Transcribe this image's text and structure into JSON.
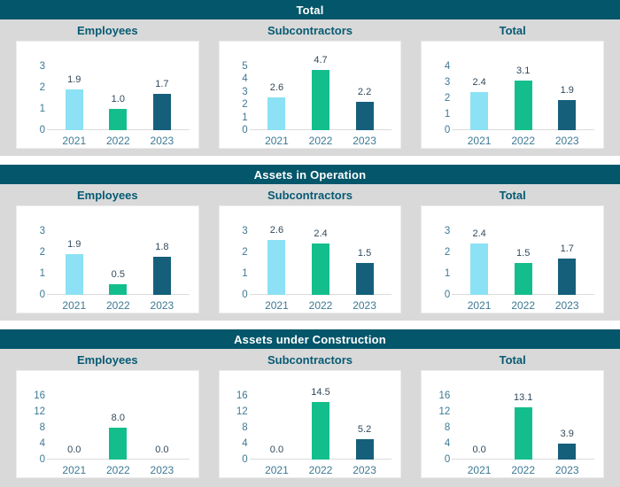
{
  "colors": {
    "header_bg": "#04566A",
    "header_text": "#FFFFFF",
    "section_bg": "#D9D9D9",
    "card_bg": "#FFFFFF",
    "card_border": "#ECECEC",
    "subtitle_text": "#075A73",
    "value_text": "#31495C",
    "axis_text": "#3D7994",
    "axis_line": "#DCDCDC",
    "year_colors": {
      "2021": "#8CE1F4",
      "2022": "#14BE8C",
      "2023": "#155F7B"
    }
  },
  "sections": [
    {
      "title": "Total"
    },
    {
      "title": "Assets in Operation"
    },
    {
      "title": "Assets under Construction"
    }
  ],
  "chart_data": [
    {
      "type": "bar",
      "section": "Total",
      "title": "Employees",
      "categories": [
        "2021",
        "2022",
        "2023"
      ],
      "values": [
        1.9,
        1.0,
        1.7
      ],
      "data_labels": [
        "1.9",
        "1.0",
        "1.7"
      ],
      "ylim": [
        0,
        3
      ],
      "yticks": [
        0,
        1,
        2,
        3
      ],
      "grid": false,
      "legend": "none"
    },
    {
      "type": "bar",
      "section": "Total",
      "title": "Subcontractors",
      "categories": [
        "2021",
        "2022",
        "2023"
      ],
      "values": [
        2.6,
        4.7,
        2.2
      ],
      "data_labels": [
        "2.6",
        "4.7",
        "2.2"
      ],
      "ylim": [
        0,
        5
      ],
      "yticks": [
        0,
        1,
        2,
        3,
        4,
        5
      ],
      "grid": false,
      "legend": "none"
    },
    {
      "type": "bar",
      "section": "Total",
      "title": "Total",
      "categories": [
        "2021",
        "2022",
        "2023"
      ],
      "values": [
        2.4,
        3.1,
        1.9
      ],
      "data_labels": [
        "2.4",
        "3.1",
        "1.9"
      ],
      "ylim": [
        0,
        4
      ],
      "yticks": [
        0,
        1,
        2,
        3,
        4
      ],
      "grid": false,
      "legend": "none"
    },
    {
      "type": "bar",
      "section": "Assets in Operation",
      "title": "Employees",
      "categories": [
        "2021",
        "2022",
        "2023"
      ],
      "values": [
        1.9,
        0.5,
        1.8
      ],
      "data_labels": [
        "1.9",
        "0.5",
        "1.8"
      ],
      "ylim": [
        0,
        3
      ],
      "yticks": [
        0,
        1,
        2,
        3
      ],
      "grid": false,
      "legend": "none"
    },
    {
      "type": "bar",
      "section": "Assets in Operation",
      "title": "Subcontractors",
      "categories": [
        "2021",
        "2022",
        "2023"
      ],
      "values": [
        2.6,
        2.4,
        1.5
      ],
      "data_labels": [
        "2.6",
        "2.4",
        "1.5"
      ],
      "ylim": [
        0,
        3
      ],
      "yticks": [
        0,
        1,
        2,
        3
      ],
      "grid": false,
      "legend": "none"
    },
    {
      "type": "bar",
      "section": "Assets in Operation",
      "title": "Total",
      "categories": [
        "2021",
        "2022",
        "2023"
      ],
      "values": [
        2.4,
        1.5,
        1.7
      ],
      "data_labels": [
        "2.4",
        "1.5",
        "1.7"
      ],
      "ylim": [
        0,
        3
      ],
      "yticks": [
        0,
        1,
        2,
        3
      ],
      "grid": false,
      "legend": "none"
    },
    {
      "type": "bar",
      "section": "Assets under Construction",
      "title": "Employees",
      "categories": [
        "2021",
        "2022",
        "2023"
      ],
      "values": [
        0.0,
        8.0,
        0.0
      ],
      "data_labels": [
        "0.0",
        "8.0",
        "0.0"
      ],
      "ylim": [
        0,
        16
      ],
      "yticks": [
        0,
        4,
        8,
        12,
        16
      ],
      "grid": false,
      "legend": "none"
    },
    {
      "type": "bar",
      "section": "Assets under Construction",
      "title": "Subcontractors",
      "categories": [
        "2021",
        "2022",
        "2023"
      ],
      "values": [
        0.0,
        14.5,
        5.2
      ],
      "data_labels": [
        "0.0",
        "14.5",
        "5.2"
      ],
      "ylim": [
        0,
        16
      ],
      "yticks": [
        0,
        4,
        8,
        12,
        16
      ],
      "grid": false,
      "legend": "none"
    },
    {
      "type": "bar",
      "section": "Assets under Construction",
      "title": "Total",
      "categories": [
        "2021",
        "2022",
        "2023"
      ],
      "values": [
        0.0,
        13.1,
        3.9
      ],
      "data_labels": [
        "0.0",
        "13.1",
        "3.9"
      ],
      "ylim": [
        0,
        16
      ],
      "yticks": [
        0,
        4,
        8,
        12,
        16
      ],
      "grid": false,
      "legend": "none"
    }
  ]
}
